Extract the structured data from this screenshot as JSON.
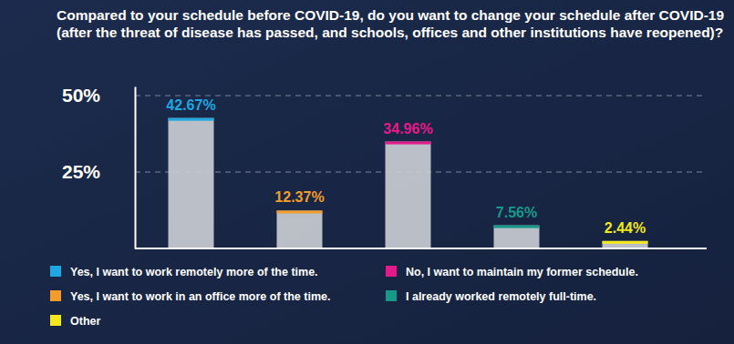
{
  "chart_data": {
    "type": "bar",
    "title": "Compared to your schedule before COVID-19, do you want to change your schedule after COVID-19 (after the threat of disease has passed, and schools, offices and other institutions have reopened)?",
    "categories": [
      "Yes, I want to work remotely more of the time.",
      "Yes, I want to work in an office more of the time.",
      "No, I want to maintain my former schedule.",
      "I already worked remotely full-time.",
      "Other"
    ],
    "values": [
      42.67,
      12.37,
      34.96,
      7.56,
      2.44
    ],
    "value_labels": [
      "42.67%",
      "12.37%",
      "34.96%",
      "7.56%",
      "2.44%"
    ],
    "colors": [
      "#1ea7e1",
      "#f39c2a",
      "#e5198a",
      "#17998a",
      "#f2e81c"
    ],
    "ylim": [
      0,
      53
    ],
    "yticks": [
      {
        "value": 25,
        "label": "25%"
      },
      {
        "value": 50,
        "label": "50%"
      }
    ],
    "grid": true,
    "data_labels": true,
    "tick_labels": "y",
    "legend": "bottom"
  }
}
